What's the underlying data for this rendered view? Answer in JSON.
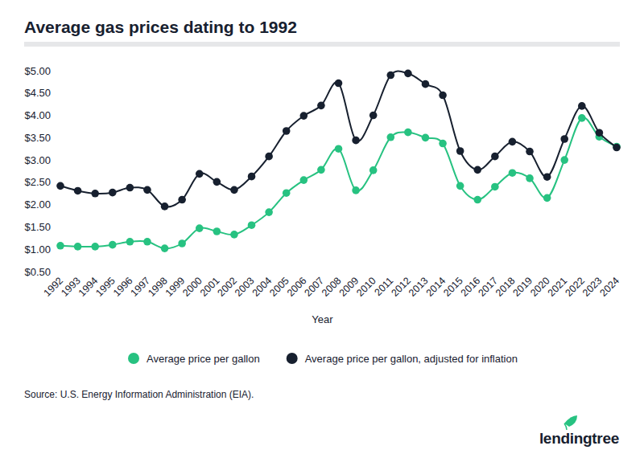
{
  "chart_data": {
    "type": "line",
    "title": "Average gas prices dating to 1992",
    "x_label": "Year",
    "categories": [
      "1992",
      "1993",
      "1994",
      "1995",
      "1996",
      "1997",
      "1998",
      "1999",
      "2000",
      "2001",
      "2002",
      "2003",
      "2004",
      "2005",
      "2006",
      "2007",
      "2008",
      "2009",
      "2010",
      "2011",
      "2012",
      "2013",
      "2014",
      "2015",
      "2016",
      "2017",
      "2018",
      "2019",
      "2020",
      "2021",
      "2022",
      "2023",
      "2024"
    ],
    "series": [
      {
        "name": "Average price per gallon",
        "color": "#27c281",
        "marker": "circle",
        "values": [
          1.08,
          1.06,
          1.06,
          1.1,
          1.17,
          1.17,
          1.02,
          1.13,
          1.47,
          1.4,
          1.33,
          1.54,
          1.83,
          2.26,
          2.55,
          2.78,
          3.25,
          2.32,
          2.77,
          3.51,
          3.62,
          3.5,
          3.37,
          2.42,
          2.11,
          2.4,
          2.71,
          2.59,
          2.15,
          3.0,
          3.94,
          3.52,
          3.3
        ]
      },
      {
        "name": "Average price per gallon, adjusted for inflation",
        "color": "#17202f",
        "marker": "circle",
        "values": [
          2.42,
          2.31,
          2.25,
          2.27,
          2.38,
          2.33,
          1.96,
          2.11,
          2.69,
          2.51,
          2.33,
          2.63,
          3.08,
          3.65,
          3.99,
          4.22,
          4.72,
          3.44,
          4.0,
          4.9,
          4.94,
          4.7,
          4.45,
          3.2,
          2.78,
          3.08,
          3.41,
          3.19,
          2.62,
          3.47,
          4.21,
          3.61,
          3.28
        ]
      }
    ],
    "ylim": [
      0.5,
      5.0
    ],
    "yticks": [
      {
        "value": 0.5,
        "label": "$0.50"
      },
      {
        "value": 1.0,
        "label": "$1.00"
      },
      {
        "value": 1.5,
        "label": "$1.50"
      },
      {
        "value": 2.0,
        "label": "$2.00"
      },
      {
        "value": 2.5,
        "label": "$2.50"
      },
      {
        "value": 3.0,
        "label": "$3.00"
      },
      {
        "value": 3.5,
        "label": "$3.50"
      },
      {
        "value": 4.0,
        "label": "$4.00"
      },
      {
        "value": 4.5,
        "label": "$4.50"
      },
      {
        "value": 5.0,
        "label": "$5.00"
      }
    ],
    "grid": false,
    "legend": "bottom",
    "source": "Source: U.S. Energy Information Administration (EIA).",
    "logo": "lendingtree"
  }
}
